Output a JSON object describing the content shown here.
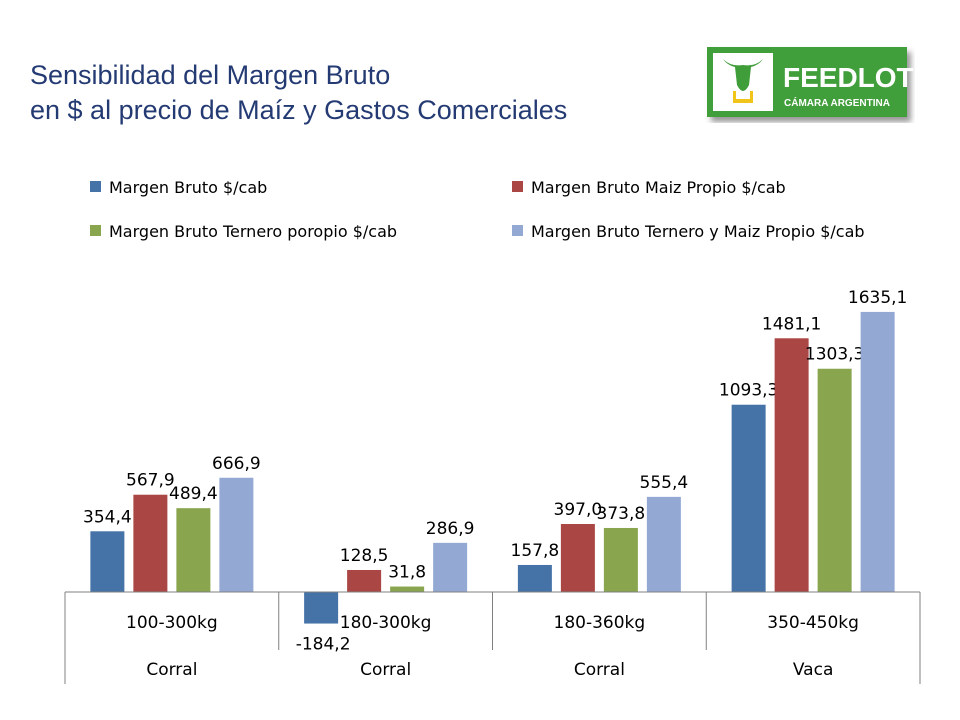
{
  "title": {
    "line1": "Sensibilidad del Margen Bruto",
    "line2": "en $ al precio de Maíz y Gastos Comerciales"
  },
  "logo": {
    "text1": "FEEDLOT",
    "text2": "CÁMARA ARGENTINA",
    "color": "#3f9e3a"
  },
  "chart_data": {
    "type": "bar",
    "categories": [
      {
        "label": "100-300kg",
        "group": "Corral"
      },
      {
        "label": "180-300kg",
        "group": "Corral"
      },
      {
        "label": "180-360kg",
        "group": "Corral"
      },
      {
        "label": "350-450kg",
        "group": "Vaca"
      }
    ],
    "series": [
      {
        "name": "Margen Bruto $/cab",
        "color": "#4572a7",
        "values": [
          354.4,
          -184.2,
          157.8,
          1093.3
        ],
        "labels": [
          "354,4",
          "-184,2",
          "157,8",
          "1093,3"
        ]
      },
      {
        "name": "Margen Bruto Maiz Propio $/cab",
        "color": "#aa4643",
        "values": [
          567.9,
          128.5,
          397.0,
          1481.1
        ],
        "labels": [
          "567,9",
          "128,5",
          "397,0",
          "1481,1"
        ]
      },
      {
        "name": "Margen Bruto Ternero poropio $/cab",
        "color": "#89a54e",
        "values": [
          489.4,
          31.8,
          373.8,
          1303.3
        ],
        "labels": [
          "489,4",
          "31,8",
          "373,8",
          "1303,3"
        ]
      },
      {
        "name": "Margen Bruto Ternero y Maiz Propio $/cab",
        "color": "#93a9d4",
        "values": [
          666.9,
          286.9,
          555.4,
          1635.1
        ],
        "labels": [
          "666,9",
          "286,9",
          "555,4",
          "1635,1"
        ]
      }
    ],
    "legend_position": "top",
    "grid": false
  }
}
